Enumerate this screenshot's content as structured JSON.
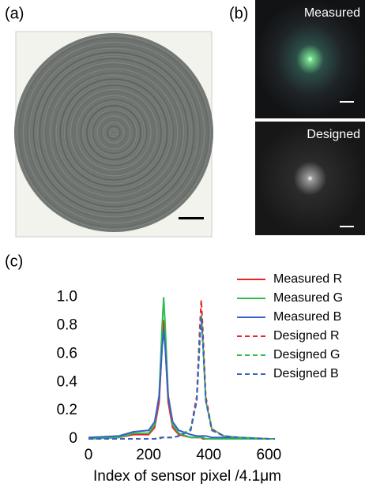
{
  "panels": {
    "a": {
      "label": "(a)"
    },
    "b": {
      "label": "(b)",
      "captions": [
        "Measured",
        "Designed"
      ]
    },
    "c": {
      "label": "(c)"
    }
  },
  "chart_data": {
    "type": "line",
    "xlabel": "Index of sensor pixel  /4.1μm",
    "x": [
      0,
      100,
      150,
      200,
      220,
      235,
      245,
      250,
      255,
      265,
      280,
      300,
      340,
      360,
      370,
      375,
      380,
      390,
      410,
      450,
      500,
      600,
      620
    ],
    "xlim": [
      0,
      620
    ],
    "xticks": [
      0,
      200,
      400,
      600
    ],
    "ylim": [
      0,
      1.02
    ],
    "yticks": [
      0,
      0.2,
      0.4,
      0.6,
      0.8,
      {
        "value": 1,
        "label": "1.0"
      }
    ],
    "legend": "upper right",
    "series": [
      {
        "name": "Measured R",
        "color": "#e8262a",
        "style": "solid",
        "values": [
          0,
          0.01,
          0.03,
          0.03,
          0.08,
          0.26,
          0.67,
          0.84,
          0.67,
          0.26,
          0.08,
          0.03,
          0.01,
          0.01,
          0.01,
          0.01,
          0,
          0,
          0,
          0,
          0,
          0,
          0
        ]
      },
      {
        "name": "Measured G",
        "color": "#2dbe4e",
        "style": "solid",
        "values": [
          0,
          0.01,
          0.04,
          0.04,
          0.1,
          0.31,
          0.8,
          1,
          0.8,
          0.31,
          0.1,
          0.04,
          0.01,
          0.01,
          0.01,
          0.01,
          0.01,
          0,
          0,
          0,
          0,
          0,
          0
        ]
      },
      {
        "name": "Measured B",
        "color": "#3a5fc8",
        "style": "solid",
        "values": [
          0.01,
          0.02,
          0.05,
          0.06,
          0.12,
          0.3,
          0.65,
          0.77,
          0.65,
          0.3,
          0.12,
          0.06,
          0.03,
          0.02,
          0.02,
          0.02,
          0.02,
          0.02,
          0.01,
          0.01,
          0.01,
          0,
          0
        ]
      },
      {
        "name": "Designed R",
        "color": "#e8262a",
        "style": "dashed",
        "values": [
          0,
          0,
          0,
          0,
          0,
          0.01,
          0.01,
          0.01,
          0.01,
          0.01,
          0.01,
          0.02,
          0.07,
          0.3,
          0.78,
          0.98,
          0.78,
          0.3,
          0.07,
          0.02,
          0.01,
          0,
          0
        ]
      },
      {
        "name": "Designed G",
        "color": "#2dbe4e",
        "style": "dashed",
        "values": [
          0,
          0,
          0,
          0,
          0,
          0,
          0.01,
          0.01,
          0.01,
          0.01,
          0.01,
          0.02,
          0.07,
          0.27,
          0.7,
          0.88,
          0.7,
          0.27,
          0.07,
          0.02,
          0.01,
          0,
          0
        ]
      },
      {
        "name": "Designed B",
        "color": "#3a5fc8",
        "style": "dashed",
        "values": [
          0,
          0,
          0,
          0,
          0,
          0,
          0.01,
          0.01,
          0.01,
          0.01,
          0.01,
          0.02,
          0.06,
          0.27,
          0.69,
          0.86,
          0.69,
          0.27,
          0.06,
          0.02,
          0.01,
          0,
          0
        ]
      }
    ]
  }
}
